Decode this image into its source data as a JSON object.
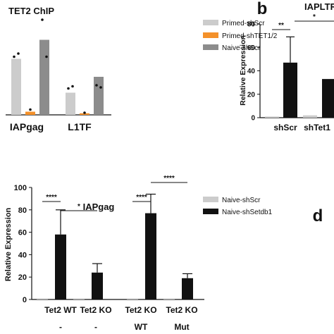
{
  "panels": {
    "b_letter": "b",
    "d_letter": "d"
  },
  "chart_data": [
    {
      "type": "bar",
      "title": "TET2 ChIP",
      "categories": [
        "IAPgag",
        "L1TF"
      ],
      "series": [
        {
          "name": "Primed-shScr",
          "color": "#cccccc",
          "values": [
            0.53,
            0.21
          ]
        },
        {
          "name": "Primed-shTET1/2",
          "color": "#f4912a",
          "values": [
            0.03,
            0.015
          ]
        },
        {
          "name": "Naive-shScr",
          "color": "#8c8c8c",
          "values": [
            0.71,
            0.36
          ]
        }
      ],
      "points": [
        [
          [
            0.55,
            0.58
          ],
          [
            0.05
          ],
          [
            0.9,
            0.55
          ]
        ],
        [
          [
            0.25,
            0.27
          ],
          [
            0.02
          ],
          [
            0.28,
            0.26
          ]
        ]
      ],
      "legend": "top-right",
      "ylim": [
        0,
        1
      ]
    },
    {
      "type": "bar",
      "title": "IAPLTR",
      "ylabel": "Relative Expression",
      "categories": [
        "shScr",
        "shTet1"
      ],
      "yticks": [
        0,
        20,
        40,
        60,
        80
      ],
      "ylim": [
        0,
        80
      ],
      "series": [
        {
          "name": "Naive-shScr",
          "color": "#cccccc",
          "values": [
            1,
            2
          ],
          "errors": [
            0,
            0
          ]
        },
        {
          "name": "Naive-shSetdb1",
          "color": "#111111",
          "values": [
            47,
            33
          ],
          "errors": [
            22,
            0
          ]
        }
      ],
      "significance": [
        {
          "label": "**"
        },
        {
          "label": "*"
        }
      ]
    },
    {
      "type": "bar",
      "title": "IAPgag",
      "ylabel": "Relative Expression",
      "categories": [
        "Tet2 WT",
        "Tet2 KO",
        "Tet2 KO",
        "Tet2 KO"
      ],
      "sublabels": [
        "-",
        "-",
        "WT",
        "Mut"
      ],
      "yticks": [
        0,
        20,
        40,
        60,
        80,
        100
      ],
      "ylim": [
        0,
        100
      ],
      "series": [
        {
          "name": "Naive-shScr",
          "color": "#cccccc",
          "values": [
            1,
            1,
            1,
            1
          ],
          "errors": [
            0,
            0,
            0,
            0
          ]
        },
        {
          "name": "Naive-shSetdb1",
          "color": "#111111",
          "values": [
            58,
            24,
            77,
            19
          ],
          "errors": [
            22,
            8,
            17,
            4
          ]
        }
      ],
      "significance": [
        {
          "label": "****"
        },
        {
          "label": "*"
        },
        {
          "label": "****"
        },
        {
          "label": "****"
        }
      ],
      "legend": "top-right"
    }
  ]
}
